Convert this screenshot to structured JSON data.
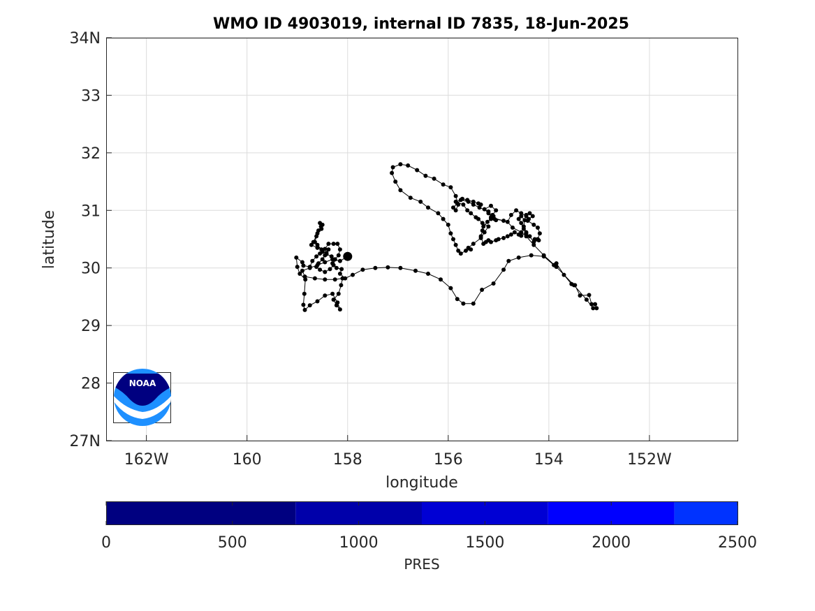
{
  "chart_data": {
    "type": "scatter",
    "title": "WMO ID 4903019, internal ID 7835, 18-Jun-2025",
    "xlabel": "longitude",
    "ylabel": "latitude",
    "xlim": [
      -162.8,
      -150.25
    ],
    "ylim": [
      27,
      34
    ],
    "x_ticks": [
      {
        "value": -162,
        "label": "162W"
      },
      {
        "value": -160,
        "label": "160"
      },
      {
        "value": -158,
        "label": "158"
      },
      {
        "value": -156,
        "label": "156"
      },
      {
        "value": -154,
        "label": "154"
      },
      {
        "value": -152,
        "label": "152W"
      }
    ],
    "y_ticks": [
      {
        "value": 27,
        "label": "27N"
      },
      {
        "value": 28,
        "label": "28"
      },
      {
        "value": 29,
        "label": "29"
      },
      {
        "value": 30,
        "label": "30"
      },
      {
        "value": 31,
        "label": "31"
      },
      {
        "value": 32,
        "label": "32"
      },
      {
        "value": 33,
        "label": "33"
      },
      {
        "value": 34,
        "label": "34N"
      }
    ],
    "grid": true,
    "marker_color": "#000000",
    "line_color": "#000000",
    "start_point": {
      "x": -158.0,
      "y": 30.2
    },
    "track": [
      [
        -158.0,
        30.2
      ],
      [
        -158.15,
        30.12
      ],
      [
        -158.3,
        30.15
      ],
      [
        -158.45,
        30.1
      ],
      [
        -158.6,
        30.05
      ],
      [
        -158.75,
        30.0
      ],
      [
        -158.9,
        29.95
      ],
      [
        -158.85,
        29.85
      ],
      [
        -158.65,
        29.82
      ],
      [
        -158.45,
        29.8
      ],
      [
        -158.25,
        29.8
      ],
      [
        -158.1,
        29.82
      ],
      [
        -158.13,
        29.7
      ],
      [
        -158.18,
        29.55
      ],
      [
        -158.28,
        29.45
      ],
      [
        -158.22,
        29.35
      ],
      [
        -158.15,
        29.28
      ],
      [
        -158.2,
        29.4
      ],
      [
        -158.3,
        29.55
      ],
      [
        -158.45,
        29.52
      ],
      [
        -158.6,
        29.42
      ],
      [
        -158.75,
        29.35
      ],
      [
        -158.85,
        29.27
      ],
      [
        -158.88,
        29.36
      ],
      [
        -158.86,
        29.55
      ],
      [
        -158.84,
        29.8
      ],
      [
        -158.95,
        29.9
      ],
      [
        -159.0,
        30.02
      ],
      [
        -159.02,
        30.18
      ],
      [
        -158.9,
        30.1
      ],
      [
        -158.88,
        30.04
      ],
      [
        -158.75,
        30.02
      ],
      [
        -158.7,
        30.12
      ],
      [
        -158.62,
        30.2
      ],
      [
        -158.55,
        30.25
      ],
      [
        -158.5,
        30.28
      ],
      [
        -158.42,
        30.26
      ],
      [
        -158.38,
        30.32
      ],
      [
        -158.45,
        30.22
      ],
      [
        -158.5,
        30.15
      ],
      [
        -158.58,
        30.08
      ],
      [
        -158.62,
        30.02
      ],
      [
        -158.55,
        29.97
      ],
      [
        -158.45,
        29.93
      ],
      [
        -158.35,
        29.98
      ],
      [
        -158.28,
        30.05
      ],
      [
        -158.25,
        30.15
      ],
      [
        -158.32,
        30.2
      ],
      [
        -158.42,
        30.24
      ],
      [
        -158.52,
        30.32
      ],
      [
        -158.6,
        30.4
      ],
      [
        -158.65,
        30.45
      ],
      [
        -158.62,
        30.55
      ],
      [
        -158.58,
        30.65
      ],
      [
        -158.53,
        30.72
      ],
      [
        -158.55,
        30.78
      ],
      [
        -158.5,
        30.75
      ],
      [
        -158.52,
        30.68
      ],
      [
        -158.6,
        30.6
      ],
      [
        -158.68,
        30.45
      ],
      [
        -158.72,
        30.4
      ],
      [
        -158.6,
        30.35
      ],
      [
        -158.45,
        30.33
      ],
      [
        -158.38,
        30.42
      ],
      [
        -158.28,
        30.42
      ],
      [
        -158.2,
        30.42
      ],
      [
        -158.15,
        30.32
      ],
      [
        -158.18,
        30.22
      ],
      [
        -158.25,
        30.15
      ],
      [
        -158.3,
        30.08
      ],
      [
        -158.22,
        30.0
      ],
      [
        -158.12,
        29.98
      ],
      [
        -158.15,
        29.9
      ],
      [
        -158.05,
        29.82
      ],
      [
        -157.9,
        29.88
      ],
      [
        -157.7,
        29.97
      ],
      [
        -157.45,
        30.0
      ],
      [
        -157.2,
        30.01
      ],
      [
        -156.95,
        30.0
      ],
      [
        -156.65,
        29.95
      ],
      [
        -156.4,
        29.9
      ],
      [
        -156.15,
        29.8
      ],
      [
        -155.95,
        29.65
      ],
      [
        -155.82,
        29.46
      ],
      [
        -155.7,
        29.38
      ],
      [
        -155.5,
        29.38
      ],
      [
        -155.33,
        29.62
      ],
      [
        -155.1,
        29.73
      ],
      [
        -154.9,
        29.97
      ],
      [
        -154.8,
        30.12
      ],
      [
        -154.6,
        30.18
      ],
      [
        -154.35,
        30.22
      ],
      [
        -154.1,
        30.2
      ],
      [
        -153.9,
        30.05
      ],
      [
        -153.85,
        30.08
      ],
      [
        -153.7,
        29.88
      ],
      [
        -153.55,
        29.72
      ],
      [
        -153.48,
        29.7
      ],
      [
        -153.38,
        29.52
      ],
      [
        -153.2,
        29.53
      ],
      [
        -153.15,
        29.37
      ],
      [
        -153.08,
        29.37
      ],
      [
        -153.05,
        29.3
      ],
      [
        -153.12,
        29.3
      ],
      [
        -153.25,
        29.45
      ],
      [
        -153.5,
        29.7
      ],
      [
        -153.85,
        30.02
      ],
      [
        -154.1,
        30.22
      ],
      [
        -154.3,
        30.4
      ],
      [
        -154.45,
        30.55
      ],
      [
        -154.55,
        30.62
      ],
      [
        -154.72,
        30.7
      ],
      [
        -154.82,
        30.8
      ],
      [
        -154.75,
        30.92
      ],
      [
        -154.65,
        31.0
      ],
      [
        -154.55,
        30.95
      ],
      [
        -154.45,
        30.9
      ],
      [
        -154.4,
        30.85
      ],
      [
        -154.32,
        30.9
      ],
      [
        -154.38,
        30.95
      ],
      [
        -154.45,
        30.92
      ],
      [
        -154.42,
        30.82
      ],
      [
        -154.3,
        30.75
      ],
      [
        -154.22,
        30.7
      ],
      [
        -154.18,
        30.6
      ],
      [
        -154.22,
        30.5
      ],
      [
        -154.28,
        30.5
      ],
      [
        -154.2,
        30.48
      ],
      [
        -154.3,
        30.45
      ],
      [
        -154.38,
        30.55
      ],
      [
        -154.45,
        30.6
      ],
      [
        -154.5,
        30.68
      ],
      [
        -154.55,
        30.78
      ],
      [
        -154.6,
        30.85
      ],
      [
        -154.55,
        30.9
      ],
      [
        -154.48,
        30.83
      ],
      [
        -154.5,
        30.72
      ],
      [
        -154.45,
        30.62
      ],
      [
        -154.55,
        30.56
      ],
      [
        -154.6,
        30.58
      ],
      [
        -154.68,
        30.62
      ],
      [
        -154.75,
        30.58
      ],
      [
        -154.82,
        30.55
      ],
      [
        -154.9,
        30.52
      ],
      [
        -155.0,
        30.5
      ],
      [
        -155.05,
        30.48
      ],
      [
        -155.15,
        30.45
      ],
      [
        -155.2,
        30.48
      ],
      [
        -155.25,
        30.45
      ],
      [
        -155.3,
        30.42
      ],
      [
        -155.35,
        30.55
      ],
      [
        -155.32,
        30.65
      ],
      [
        -155.3,
        30.72
      ],
      [
        -155.22,
        30.8
      ],
      [
        -155.15,
        30.85
      ],
      [
        -155.05,
        30.83
      ],
      [
        -155.1,
        30.9
      ],
      [
        -155.2,
        30.95
      ],
      [
        -155.28,
        31.02
      ],
      [
        -155.15,
        31.08
      ],
      [
        -155.05,
        31.0
      ],
      [
        -155.12,
        30.92
      ],
      [
        -155.08,
        30.85
      ],
      [
        -154.9,
        30.82
      ],
      [
        -155.15,
        30.88
      ],
      [
        -155.2,
        30.98
      ],
      [
        -155.38,
        31.05
      ],
      [
        -155.5,
        31.1
      ],
      [
        -155.6,
        31.15
      ],
      [
        -155.75,
        31.18
      ],
      [
        -155.85,
        31.15
      ],
      [
        -155.7,
        31.1
      ],
      [
        -155.62,
        31.0
      ],
      [
        -155.55,
        30.95
      ],
      [
        -155.45,
        30.88
      ],
      [
        -155.4,
        30.85
      ],
      [
        -155.32,
        30.78
      ],
      [
        -155.2,
        30.72
      ],
      [
        -155.28,
        30.62
      ],
      [
        -155.35,
        30.52
      ],
      [
        -155.5,
        30.42
      ],
      [
        -155.6,
        30.35
      ],
      [
        -155.55,
        30.32
      ],
      [
        -155.65,
        30.3
      ],
      [
        -155.75,
        30.25
      ],
      [
        -155.8,
        30.3
      ],
      [
        -155.85,
        30.4
      ],
      [
        -155.9,
        30.5
      ],
      [
        -155.95,
        30.6
      ],
      [
        -156.0,
        30.75
      ],
      [
        -156.1,
        30.85
      ],
      [
        -156.2,
        30.95
      ],
      [
        -156.4,
        31.05
      ],
      [
        -156.55,
        31.15
      ],
      [
        -156.75,
        31.22
      ],
      [
        -156.95,
        31.35
      ],
      [
        -157.05,
        31.5
      ],
      [
        -157.12,
        31.65
      ],
      [
        -157.1,
        31.75
      ],
      [
        -156.95,
        31.8
      ],
      [
        -156.8,
        31.78
      ],
      [
        -156.62,
        31.7
      ],
      [
        -156.45,
        31.6
      ],
      [
        -156.28,
        31.55
      ],
      [
        -156.1,
        31.45
      ],
      [
        -155.95,
        31.4
      ],
      [
        -155.85,
        31.25
      ],
      [
        -155.8,
        31.1
      ],
      [
        -155.85,
        31.0
      ],
      [
        -155.9,
        31.05
      ],
      [
        -155.82,
        31.12
      ],
      [
        -155.72,
        31.2
      ],
      [
        -155.62,
        31.18
      ],
      [
        -155.5,
        31.15
      ],
      [
        -155.4,
        31.12
      ],
      [
        -155.35,
        31.1
      ]
    ],
    "colorbar": {
      "label": "PRES",
      "ticks": [
        {
          "value": 0,
          "label": "0"
        },
        {
          "value": 500,
          "label": "500"
        },
        {
          "value": 1000,
          "label": "1000"
        },
        {
          "value": 1500,
          "label": "1500"
        },
        {
          "value": 2000,
          "label": "2000"
        },
        {
          "value": 2500,
          "label": "2500"
        }
      ],
      "range": [
        0,
        2500
      ],
      "bands": [
        {
          "from": 0,
          "to": 750,
          "color": "#000080"
        },
        {
          "from": 750,
          "to": 1250,
          "color": "#0000aa"
        },
        {
          "from": 1250,
          "to": 1750,
          "color": "#0000d4"
        },
        {
          "from": 1750,
          "to": 2250,
          "color": "#0000ff"
        },
        {
          "from": 2250,
          "to": 2500,
          "color": "#0033ff"
        }
      ]
    }
  },
  "logo": {
    "text": "NOAA",
    "dark_color": "#000080",
    "light_color": "#1e90ff"
  }
}
